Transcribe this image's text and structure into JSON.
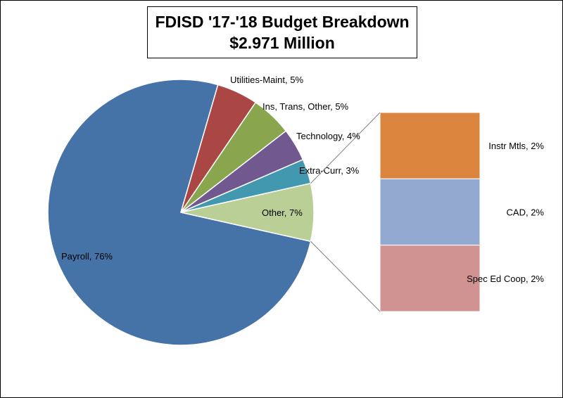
{
  "chart_data": {
    "type": "pie",
    "title": "FDISD '17-'18 Budget Breakdown",
    "subtitle": "$2.971 Million",
    "slices": [
      {
        "label": "Payroll, 76%",
        "value": 76,
        "color": "#4572A7"
      },
      {
        "label": "Utilities-Maint, 5%",
        "value": 5,
        "color": "#AA4643"
      },
      {
        "label": "Ins, Trans, Other, 5%",
        "value": 5,
        "color": "#89A54E"
      },
      {
        "label": "Technology, 4%",
        "value": 4,
        "color": "#71588F"
      },
      {
        "label": "Extra-Curr, 3%",
        "value": 3,
        "color": "#4198AF"
      },
      {
        "label": "Other, 7%",
        "value": 7,
        "color": "#B9CF96"
      }
    ],
    "breakdown_of": "Other, 7%",
    "breakdown": [
      {
        "label": "Instr Mtls, 2%",
        "value": 2,
        "color": "#DB843D"
      },
      {
        "label": "CAD, 2%",
        "value": 2,
        "color": "#93A9CF"
      },
      {
        "label": "Spec Ed Coop, 2%",
        "value": 2,
        "color": "#D19392"
      }
    ]
  }
}
